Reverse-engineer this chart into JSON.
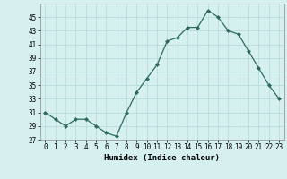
{
  "x": [
    0,
    1,
    2,
    3,
    4,
    5,
    6,
    7,
    8,
    9,
    10,
    11,
    12,
    13,
    14,
    15,
    16,
    17,
    18,
    19,
    20,
    21,
    22,
    23
  ],
  "y": [
    31,
    30,
    29,
    30,
    30,
    29,
    28,
    27.5,
    31,
    34,
    36,
    38,
    41.5,
    42,
    43.5,
    43.5,
    46,
    45,
    43,
    42.5,
    40,
    37.5,
    35,
    33
  ],
  "line_color": "#2e6b5e",
  "marker_color": "#2e6b5e",
  "bg_color": "#d6f0f0",
  "grid_color": "#b8dede",
  "xlabel": "Humidex (Indice chaleur)",
  "ylim": [
    27,
    47
  ],
  "xlim": [
    -0.5,
    23.5
  ],
  "yticks": [
    27,
    29,
    31,
    33,
    35,
    37,
    39,
    41,
    43,
    45
  ],
  "xticks": [
    0,
    1,
    2,
    3,
    4,
    5,
    6,
    7,
    8,
    9,
    10,
    11,
    12,
    13,
    14,
    15,
    16,
    17,
    18,
    19,
    20,
    21,
    22,
    23
  ],
  "label_fontsize": 6.5,
  "tick_fontsize": 5.5
}
